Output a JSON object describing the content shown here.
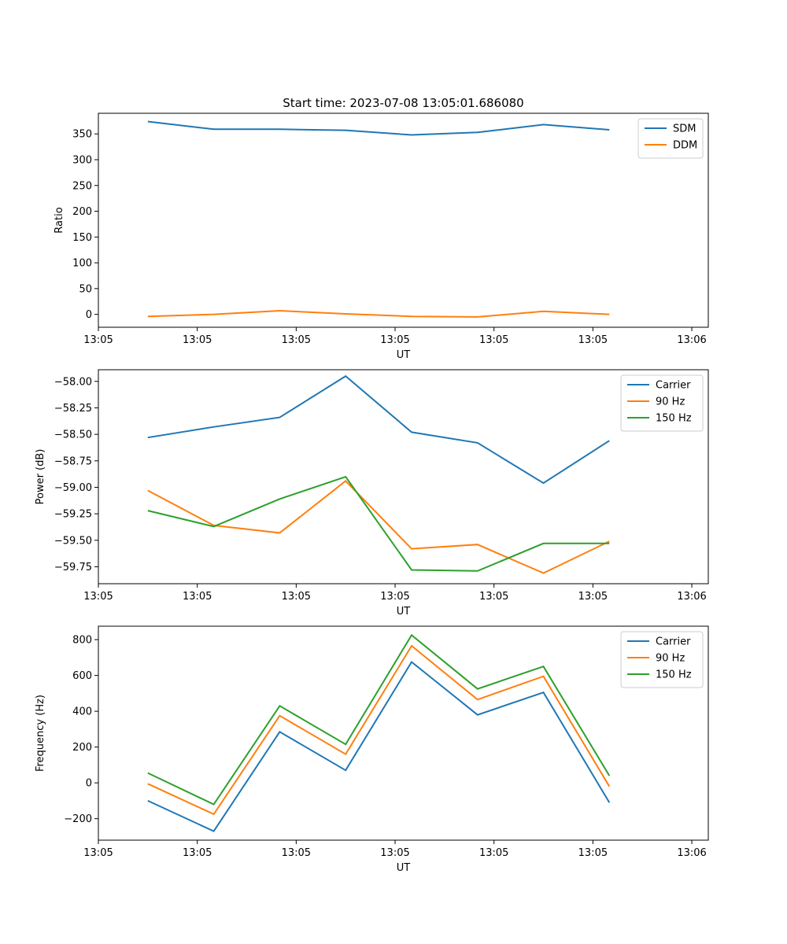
{
  "chart_data": [
    {
      "type": "line",
      "title": "Start time: 2023-07-08 13:05:01.686080",
      "xlabel": "UT",
      "ylabel": "Ratio",
      "x": [
        0,
        1,
        2,
        3,
        4,
        5,
        6,
        7
      ],
      "xlim": [
        -0.75,
        8.5
      ],
      "xticks": [
        -0.75,
        0.75,
        2.25,
        3.75,
        5.25,
        6.75,
        8.25
      ],
      "xtick_labels": [
        "13:05",
        "13:05",
        "13:05",
        "13:05",
        "13:05",
        "13:05",
        "13:06"
      ],
      "ylim": [
        -25,
        390
      ],
      "yticks": [
        0,
        50,
        100,
        150,
        200,
        250,
        300,
        350
      ],
      "ytick_labels": [
        "0",
        "50",
        "100",
        "150",
        "200",
        "250",
        "300",
        "350"
      ],
      "legend_position": "top-right",
      "series": [
        {
          "name": "SDM",
          "color": "#1f77b4",
          "values": [
            374,
            359,
            359,
            357,
            348,
            353,
            368,
            358
          ]
        },
        {
          "name": "DDM",
          "color": "#ff7f0e",
          "values": [
            -4,
            0,
            7,
            1,
            -4,
            -5,
            6,
            0
          ]
        }
      ]
    },
    {
      "type": "line",
      "title": "",
      "xlabel": "UT",
      "ylabel": "Power (dB)",
      "x": [
        0,
        1,
        2,
        3,
        4,
        5,
        6,
        7
      ],
      "xlim": [
        -0.75,
        8.5
      ],
      "xticks": [
        -0.75,
        0.75,
        2.25,
        3.75,
        5.25,
        6.75,
        8.25
      ],
      "xtick_labels": [
        "13:05",
        "13:05",
        "13:05",
        "13:05",
        "13:05",
        "13:05",
        "13:06"
      ],
      "ylim": [
        -59.91,
        -57.89
      ],
      "yticks": [
        -58.0,
        -58.25,
        -58.5,
        -58.75,
        -59.0,
        -59.25,
        -59.5,
        -59.75
      ],
      "ytick_labels": [
        "−58.00",
        "−58.25",
        "−58.50",
        "−58.75",
        "−59.00",
        "−59.25",
        "−59.50",
        "−59.75"
      ],
      "legend_position": "top-right",
      "series": [
        {
          "name": "Carrier",
          "color": "#1f77b4",
          "values": [
            -58.53,
            -58.43,
            -58.34,
            -57.95,
            -58.48,
            -58.58,
            -58.96,
            -58.56
          ]
        },
        {
          "name": "90 Hz",
          "color": "#ff7f0e",
          "values": [
            -59.03,
            -59.36,
            -59.43,
            -58.94,
            -59.58,
            -59.54,
            -59.81,
            -59.51
          ]
        },
        {
          "name": "150 Hz",
          "color": "#2ca02c",
          "values": [
            -59.22,
            -59.37,
            -59.11,
            -58.9,
            -59.78,
            -59.79,
            -59.53,
            -59.53
          ]
        }
      ]
    },
    {
      "type": "line",
      "title": "",
      "xlabel": "UT",
      "ylabel": "Frequency (Hz)",
      "x": [
        0,
        1,
        2,
        3,
        4,
        5,
        6,
        7
      ],
      "xlim": [
        -0.75,
        8.5
      ],
      "xticks": [
        -0.75,
        0.75,
        2.25,
        3.75,
        5.25,
        6.75,
        8.25
      ],
      "xtick_labels": [
        "13:05",
        "13:05",
        "13:05",
        "13:05",
        "13:05",
        "13:05",
        "13:06"
      ],
      "ylim": [
        -320,
        875
      ],
      "yticks": [
        -200,
        0,
        200,
        400,
        600,
        800
      ],
      "ytick_labels": [
        "−200",
        "0",
        "200",
        "400",
        "600",
        "800"
      ],
      "legend_position": "top-right",
      "series": [
        {
          "name": "Carrier",
          "color": "#1f77b4",
          "values": [
            -100,
            -270,
            285,
            70,
            675,
            380,
            505,
            -110
          ]
        },
        {
          "name": "90 Hz",
          "color": "#ff7f0e",
          "values": [
            -5,
            -175,
            375,
            160,
            765,
            465,
            595,
            -20
          ]
        },
        {
          "name": "150 Hz",
          "color": "#2ca02c",
          "values": [
            55,
            -120,
            430,
            215,
            825,
            525,
            650,
            40
          ]
        }
      ]
    }
  ]
}
